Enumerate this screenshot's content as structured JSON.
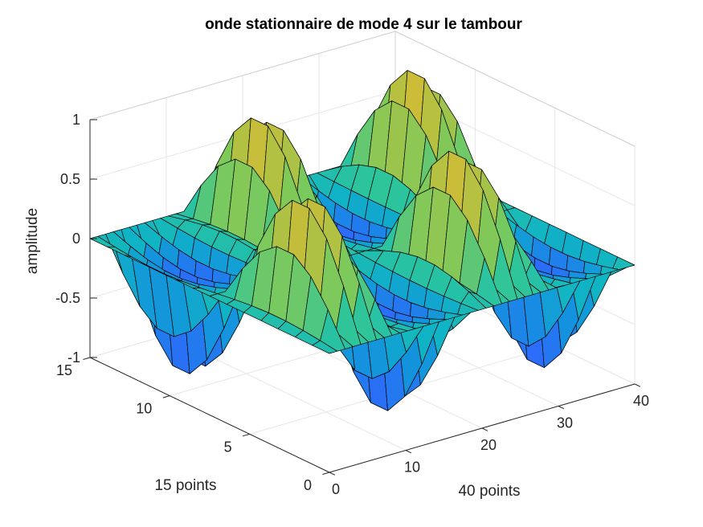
{
  "chart_data": {
    "type": "surface",
    "title": "onde stationnaire de mode 4 sur le tambour",
    "xlabel": "40 points",
    "ylabel": "15 points",
    "zlabel": "amplitude",
    "xlim": [
      0,
      40
    ],
    "ylim": [
      0,
      15
    ],
    "zlim": [
      -1,
      1
    ],
    "x_ticks": [
      "0",
      "10",
      "20",
      "30",
      "40"
    ],
    "y_ticks": [
      "0",
      "5",
      "10",
      "15"
    ],
    "z_ticks": [
      "-1",
      "-0.5",
      "0",
      "0.5",
      "1"
    ],
    "grid": true,
    "colormap": "parula",
    "colormap_stops": [
      "#3e26a8",
      "#4538e8",
      "#2b6cf8",
      "#1494dd",
      "#10b4c4",
      "#2ec59b",
      "#7ec95a",
      "#cbbd38",
      "#fcbd3d",
      "#f9fb15"
    ],
    "grid_size": {
      "nx": 40,
      "ny": 15
    },
    "function": "z = sin(4*pi*x/40) * sin(2*pi*y/15) with alternating sign per x column (mode 4 standing wave)",
    "peak_amplitude": 1.0
  }
}
